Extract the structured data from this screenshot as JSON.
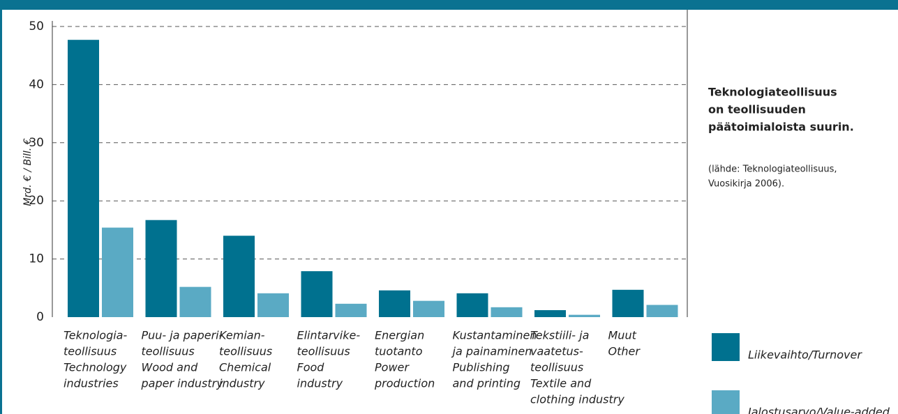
{
  "chart_data": {
    "type": "bar",
    "y_label": "Mrd. €  /  Bill. €",
    "categories": [
      [
        "Teknologia-",
        "teollisuus",
        "Technology",
        "industries"
      ],
      [
        "Puu- ja paperi-",
        "teollisuus",
        "Wood and",
        "paper industry"
      ],
      [
        "Kemian-",
        "teollisuus",
        "Chemical",
        "industry"
      ],
      [
        "Elintarvike-",
        "teollisuus",
        "Food",
        "industry"
      ],
      [
        "Energian",
        "tuotanto",
        "Power",
        "production"
      ],
      [
        "Kustantaminen",
        "ja painaminen",
        "Publishing",
        "and printing"
      ],
      [
        "Tekstiili- ja",
        "vaatetus-",
        "teollisuus",
        "Textile and",
        "clothing industry"
      ],
      [
        "Muut",
        "Other"
      ]
    ],
    "series": [
      {
        "name": "Liikevaihto/Turnover",
        "color": "#00718f",
        "values": [
          47.7,
          16.7,
          14,
          7.9,
          4.6,
          4.1,
          1.2,
          4.7
        ]
      },
      {
        "name": "Jalostusarvo/Value-added",
        "color": "#5aaac4",
        "values": [
          15.4,
          5.2,
          4.1,
          2.3,
          2.8,
          1.7,
          0.4,
          2.1
        ]
      }
    ],
    "ylim": [
      0,
      50
    ],
    "yticks": [
      0,
      10,
      20,
      30,
      40,
      50
    ],
    "grid": true,
    "annotation": {
      "headline": [
        "Teknologiateollisuus",
        "on teollisuuden",
        "päätoimialoista suurin."
      ],
      "source": [
        "(lähde: Teknologiateollisuus,",
        "Vuosikirja 2006)."
      ]
    }
  }
}
